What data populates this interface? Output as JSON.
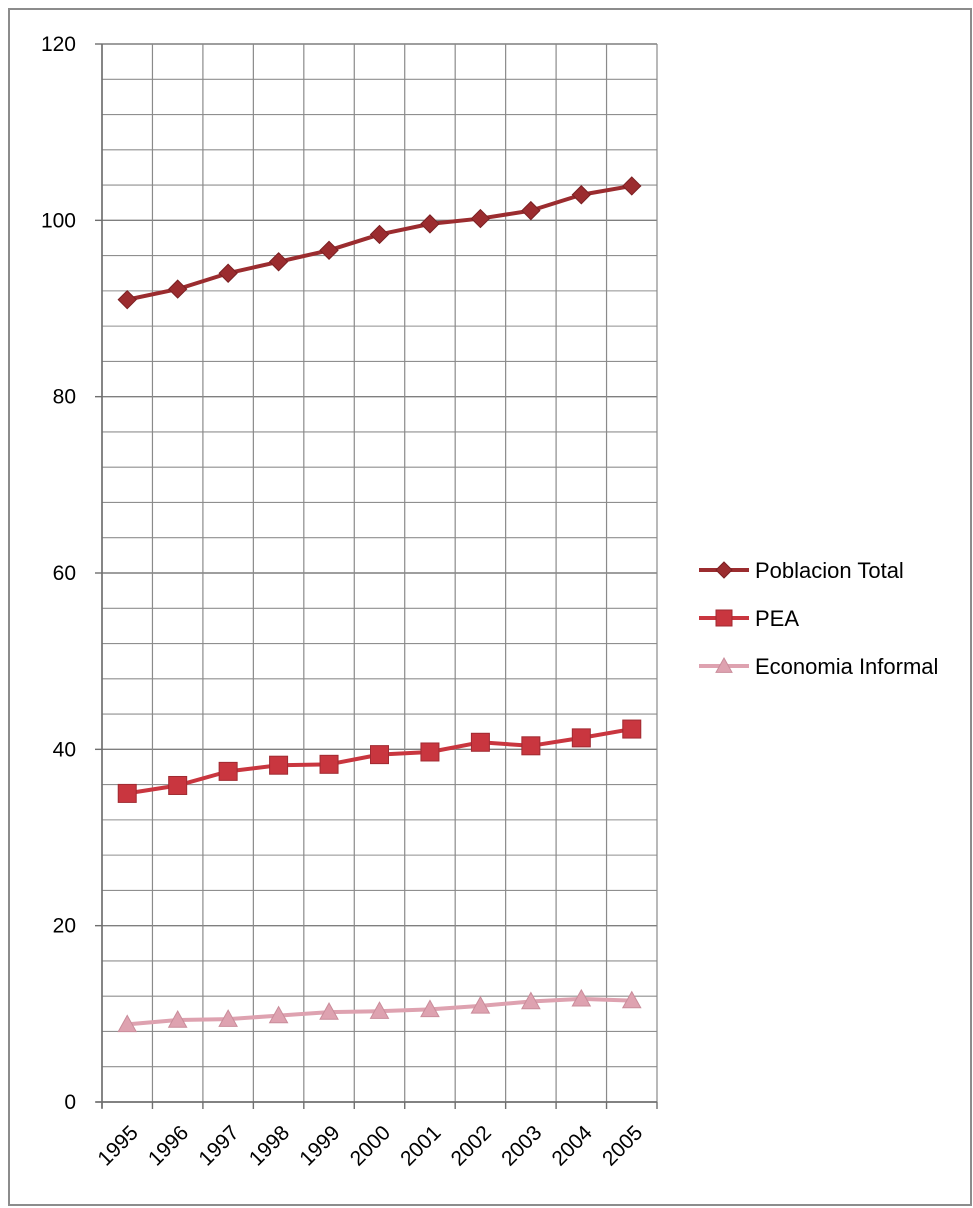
{
  "chart_data": {
    "type": "line",
    "title": "",
    "xlabel": "",
    "ylabel": "",
    "categories": [
      "1995",
      "1996",
      "1997",
      "1998",
      "1999",
      "2000",
      "2001",
      "2002",
      "2003",
      "2004",
      "2005"
    ],
    "ylim": [
      0,
      120
    ],
    "y_major_ticks": [
      0,
      20,
      40,
      60,
      80,
      100,
      120
    ],
    "y_minor_step": 4,
    "grid": true,
    "legend_position": "right",
    "series": [
      {
        "name": "Poblacion Total",
        "marker": "diamond",
        "color": "#9b2c2f",
        "values": [
          91.0,
          92.2,
          94.0,
          95.3,
          96.6,
          98.4,
          99.6,
          100.2,
          101.1,
          102.9,
          103.9
        ]
      },
      {
        "name": "PEA",
        "marker": "square",
        "color": "#c9363f",
        "values": [
          35.0,
          35.9,
          37.5,
          38.2,
          38.3,
          39.4,
          39.7,
          40.8,
          40.4,
          41.3,
          42.3
        ]
      },
      {
        "name": "Economia Informal",
        "marker": "triangle",
        "color": "#dea2b0",
        "values": [
          8.8,
          9.3,
          9.4,
          9.8,
          10.2,
          10.3,
          10.5,
          10.9,
          11.4,
          11.7,
          11.5
        ]
      }
    ]
  }
}
